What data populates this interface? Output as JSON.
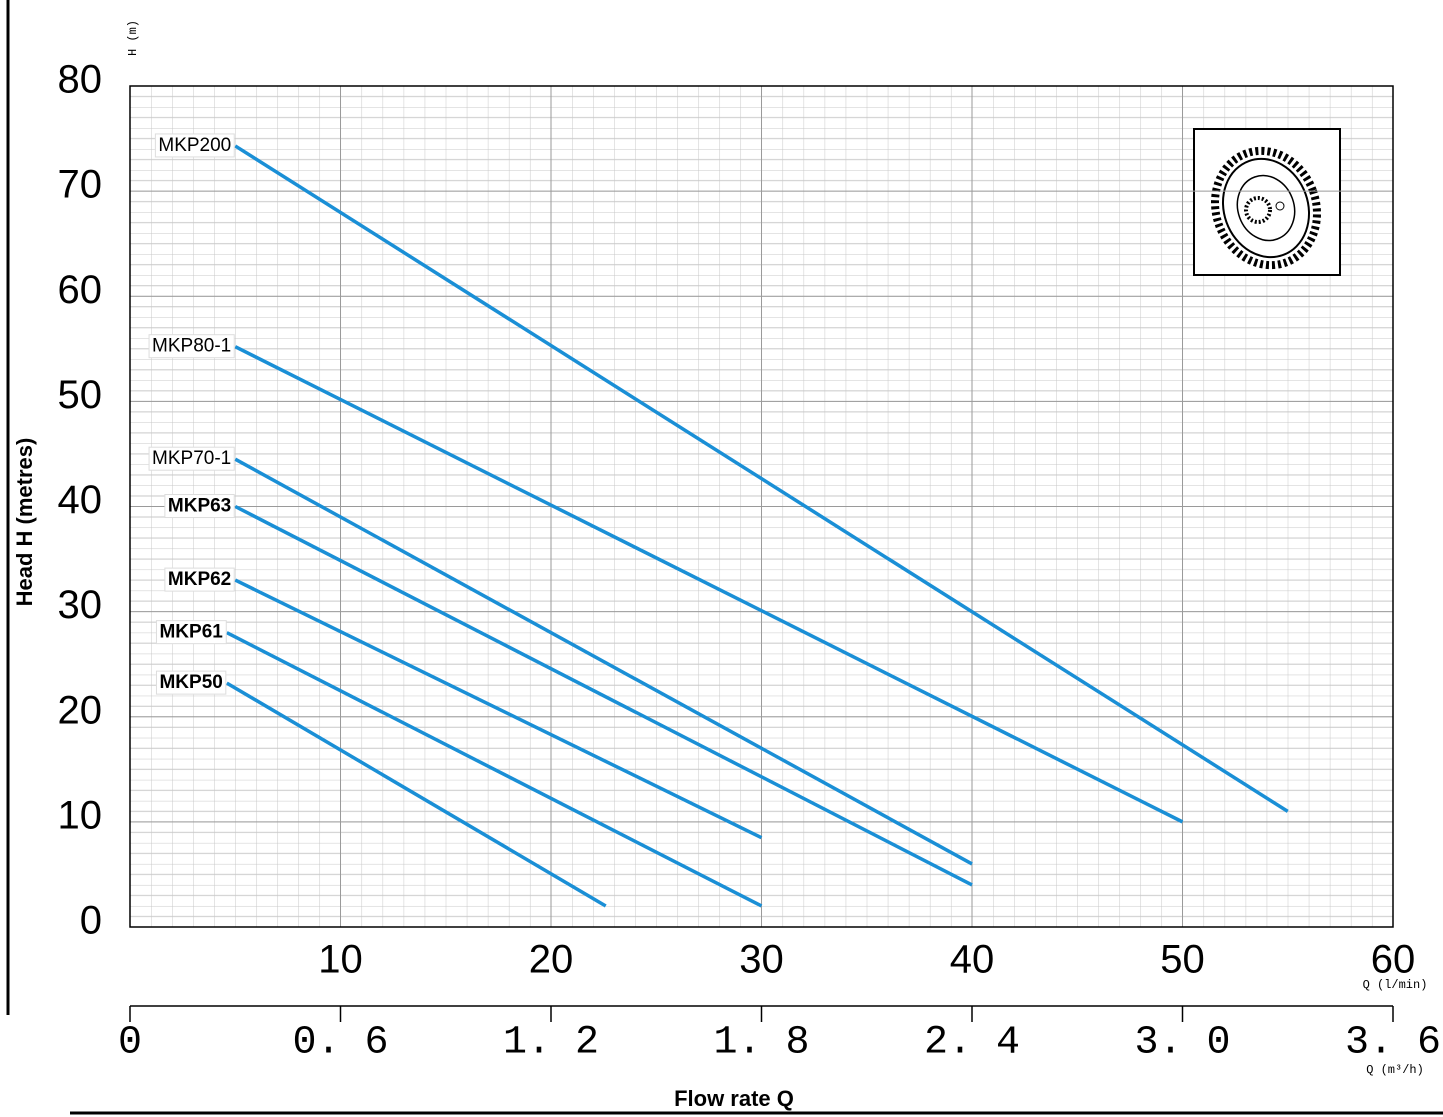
{
  "chart_data": {
    "type": "line",
    "y_label": "Head H (metres)",
    "x_label": "Flow rate  Q",
    "y_unit": "H (m)",
    "x_unit": "Q (l/min)",
    "x2_unit": "Q (m³/h)",
    "xlim": [
      0,
      60
    ],
    "xticks": [
      10,
      20,
      30,
      40,
      50,
      60
    ],
    "x2lim": [
      0,
      3.6
    ],
    "x2ticks": [
      0,
      {
        "value": 0.6,
        "label": "0. 6"
      },
      {
        "value": 1.2,
        "label": "1. 2"
      },
      {
        "value": 1.8,
        "label": "1. 8"
      },
      {
        "value": 2.4,
        "label": "2. 4"
      },
      {
        "value": 3.0,
        "label": "3. 0"
      },
      {
        "value": 3.6,
        "label": "3. 6"
      }
    ],
    "ylim": [
      0,
      80
    ],
    "yticks": [
      0,
      10,
      20,
      30,
      40,
      50,
      60,
      70,
      80
    ],
    "grid": true,
    "series": [
      {
        "name": "MKP200",
        "color": "#1a8fd6",
        "x": [
          5,
          55
        ],
        "values": [
          74.3,
          11
        ]
      },
      {
        "name": "MKP80-1",
        "color": "#1a8fd6",
        "x": [
          5,
          50
        ],
        "values": [
          55.2,
          10
        ]
      },
      {
        "name": "MKP70-1",
        "color": "#1a8fd6",
        "x": [
          5,
          40
        ],
        "values": [
          44.5,
          6
        ]
      },
      {
        "name": "MKP63",
        "color": "#1a8fd6",
        "x": [
          5,
          40
        ],
        "values": [
          40,
          4
        ]
      },
      {
        "name": "MKP62",
        "color": "#1a8fd6",
        "x": [
          5,
          30
        ],
        "values": [
          33,
          8.5
        ]
      },
      {
        "name": "MKP61",
        "color": "#1a8fd6",
        "x": [
          4.6,
          30
        ],
        "values": [
          28,
          2
        ]
      },
      {
        "name": "MKP50",
        "color": "#1a8fd6",
        "x": [
          4.6,
          22.6
        ],
        "values": [
          23.2,
          2
        ]
      }
    ]
  }
}
